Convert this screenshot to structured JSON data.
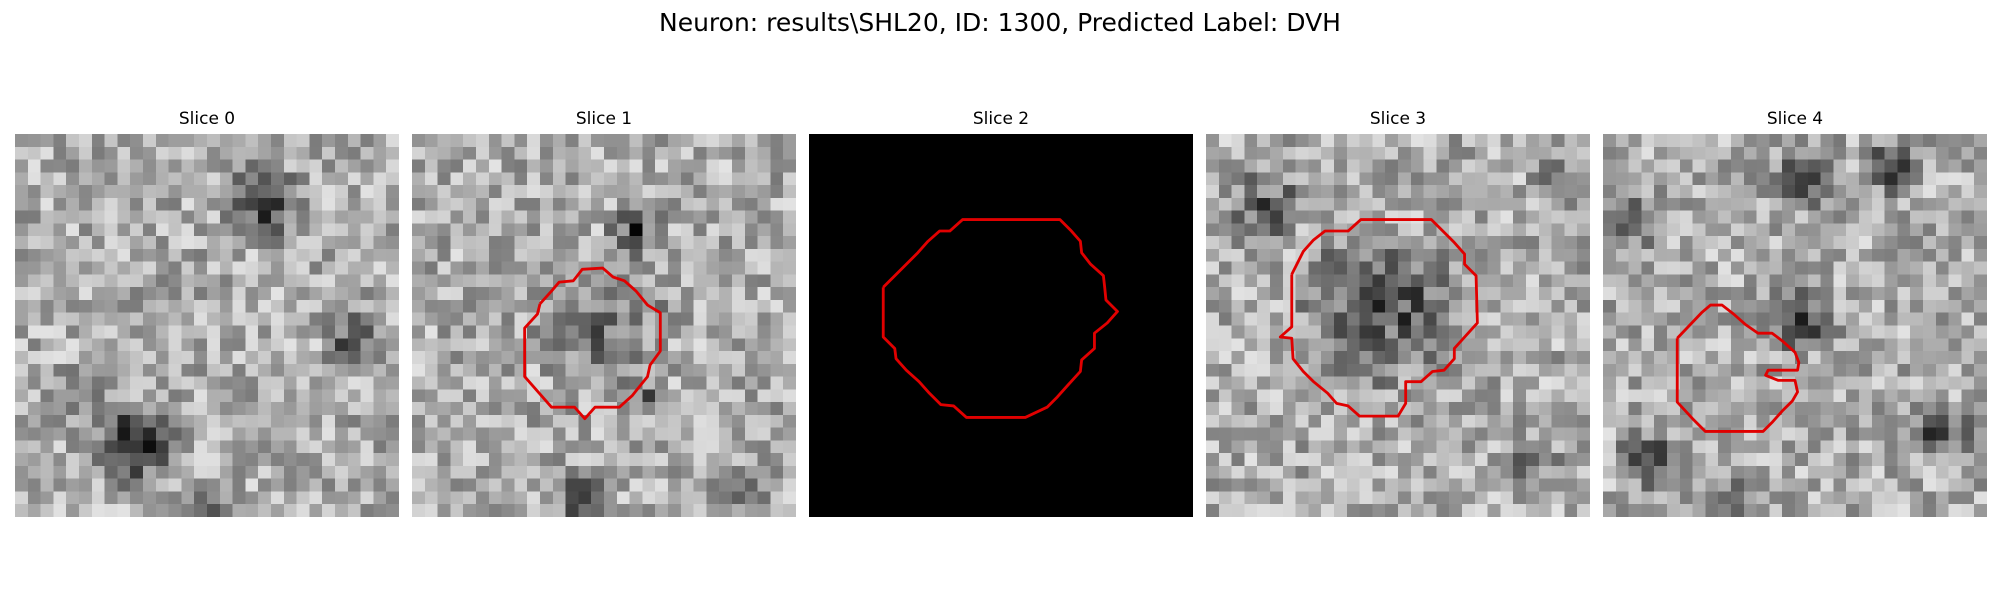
{
  "figure": {
    "title": "Neuron: results\\SHL20, ID: 1300, Predicted Label: DVH"
  },
  "colors": {
    "background": "#ffffff",
    "contour": "#e00000",
    "blank_slice": "#000000"
  },
  "slices": [
    {
      "title": "Slice 0",
      "seed": 11,
      "has_contour": false,
      "blank": false
    },
    {
      "title": "Slice 1",
      "seed": 23,
      "has_contour": true,
      "blank": false
    },
    {
      "title": "Slice 2",
      "seed": 37,
      "has_contour": true,
      "blank": true
    },
    {
      "title": "Slice 3",
      "seed": 41,
      "has_contour": true,
      "blank": false
    },
    {
      "title": "Slice 4",
      "seed": 59,
      "has_contour": true,
      "blank": false
    }
  ]
}
